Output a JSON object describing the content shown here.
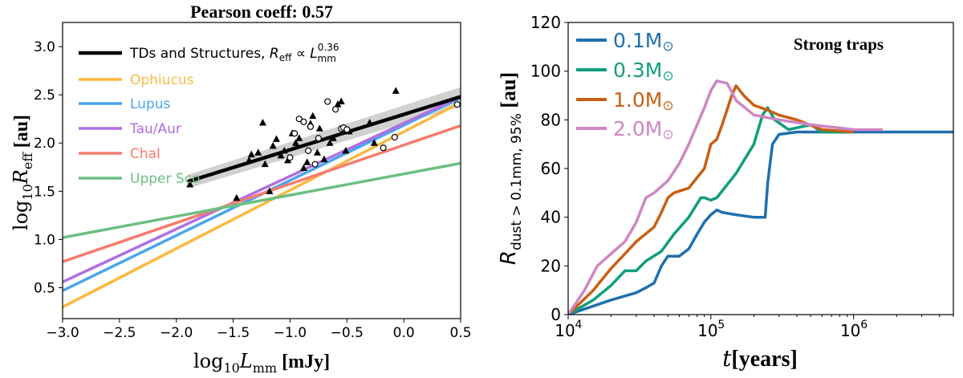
{
  "chart_data": [
    {
      "type": "scatter",
      "title": "Pearson coeff: 0.57",
      "xlabel": "log10Lmm [mJy]",
      "ylabel": "log10Reff [au]",
      "xlim": [
        -3.0,
        0.5
      ],
      "ylim": [
        0.18,
        3.25
      ],
      "xticks": [
        "−3.0",
        "−2.5",
        "−2.0",
        "−1.5",
        "−1.0",
        "−0.5",
        "0.0",
        "0.5"
      ],
      "xtick_values": [
        -3.0,
        -2.5,
        -2.0,
        -1.5,
        -1.0,
        -0.5,
        0.0,
        0.5
      ],
      "yticks": [
        "0.5",
        "1.0",
        "1.5",
        "2.0",
        "2.5",
        "3.0"
      ],
      "ytick_values": [
        0.5,
        1.0,
        1.5,
        2.0,
        2.5,
        3.0
      ],
      "legend_position": "top-left",
      "lines": [
        {
          "name": "TDs and Structures, Reff ∝ L^0.36 mm",
          "color": "#000000",
          "x": [
            -1.9,
            0.5
          ],
          "y": [
            1.6,
            2.48
          ]
        },
        {
          "name": "Ophiucus",
          "color": "#fbb940",
          "x": [
            -3.0,
            0.5
          ],
          "y": [
            0.3,
            2.42
          ]
        },
        {
          "name": "Lupus",
          "color": "#4aa5ee",
          "x": [
            -3.0,
            0.5
          ],
          "y": [
            0.47,
            2.47
          ]
        },
        {
          "name": "Tau/Aur",
          "color": "#b16fe1",
          "x": [
            -3.0,
            0.5
          ],
          "y": [
            0.56,
            2.48
          ]
        },
        {
          "name": "ChaI",
          "color": "#f77c6d",
          "x": [
            -3.0,
            0.5
          ],
          "y": [
            0.77,
            2.18
          ]
        },
        {
          "name": "Upper Sco",
          "color": "#6bbf84",
          "x": [
            -3.0,
            0.5
          ],
          "y": [
            1.02,
            1.79
          ]
        }
      ],
      "triangles": [
        [
          -1.88,
          1.57
        ],
        [
          -1.47,
          1.43
        ],
        [
          -1.36,
          1.82
        ],
        [
          -1.34,
          1.88
        ],
        [
          -1.28,
          1.9
        ],
        [
          -1.24,
          2.21
        ],
        [
          -1.22,
          1.78
        ],
        [
          -1.18,
          1.5
        ],
        [
          -1.15,
          1.97
        ],
        [
          -1.12,
          2.04
        ],
        [
          -1.08,
          1.87
        ],
        [
          -1.05,
          1.92
        ],
        [
          -1.02,
          1.82
        ],
        [
          -0.98,
          2.1
        ],
        [
          -0.95,
          2.0
        ],
        [
          -0.92,
          2.05
        ],
        [
          -0.88,
          1.74
        ],
        [
          -0.85,
          1.8
        ],
        [
          -0.82,
          2.2
        ],
        [
          -0.8,
          2.28
        ],
        [
          -0.76,
          1.9
        ],
        [
          -0.74,
          2.15
        ],
        [
          -0.7,
          1.83
        ],
        [
          -0.65,
          2.0
        ],
        [
          -0.62,
          2.05
        ],
        [
          -0.58,
          2.4
        ],
        [
          -0.55,
          2.43
        ],
        [
          -0.51,
          1.92
        ],
        [
          -0.48,
          2.12
        ],
        [
          -0.3,
          2.21
        ],
        [
          -0.26,
          2.0
        ],
        [
          -0.07,
          2.54
        ]
      ],
      "circles": [
        [
          -1.0,
          1.85
        ],
        [
          -0.96,
          2.1
        ],
        [
          -0.92,
          2.25
        ],
        [
          -0.88,
          2.22
        ],
        [
          -0.84,
          1.92
        ],
        [
          -0.82,
          2.17
        ],
        [
          -0.78,
          1.78
        ],
        [
          -0.75,
          2.05
        ],
        [
          -0.67,
          2.43
        ],
        [
          -0.6,
          2.35
        ],
        [
          -0.55,
          2.15
        ],
        [
          -0.53,
          2.16
        ],
        [
          -0.5,
          2.14
        ],
        [
          -0.18,
          1.95
        ],
        [
          -0.08,
          2.06
        ],
        [
          0.47,
          2.4
        ]
      ]
    },
    {
      "type": "line",
      "xlabel": "t[years]",
      "ylabel": "Rdust > 0.1mm, 95% [au]",
      "annotation": "Strong traps",
      "xscale": "log",
      "xlim": [
        10000,
        5000000
      ],
      "ylim": [
        0,
        120
      ],
      "xticks": [
        "10",
        "10",
        "10"
      ],
      "xtick_exponents": [
        "4",
        "5",
        "6"
      ],
      "xtick_values": [
        10000,
        100000,
        1000000
      ],
      "yticks": [
        "0",
        "20",
        "40",
        "60",
        "80",
        "100",
        "120"
      ],
      "ytick_values": [
        0,
        20,
        40,
        60,
        80,
        100,
        120
      ],
      "legend_position": "top-left",
      "series": [
        {
          "name": "0.1M",
          "color": "#1f6faf",
          "x": [
            10000,
            20000,
            30000,
            35000,
            40000,
            45000,
            50000,
            60000,
            70000,
            80000,
            90000,
            100000,
            110000,
            120000,
            150000,
            200000,
            240000,
            250000,
            270000,
            300000,
            400000,
            1000000,
            5000000
          ],
          "y": [
            0,
            6,
            9,
            11,
            13,
            20,
            24,
            24,
            27,
            33,
            38,
            41,
            43,
            42,
            41,
            40,
            40,
            54,
            70,
            74,
            75,
            75,
            75
          ]
        },
        {
          "name": "0.3M",
          "color": "#0f9e7b",
          "x": [
            10000,
            15000,
            20000,
            25000,
            30000,
            35000,
            45000,
            55000,
            70000,
            85000,
            90000,
            100000,
            110000,
            150000,
            200000,
            230000,
            250000,
            280000,
            350000,
            500000,
            600000,
            700000,
            1000000
          ],
          "y": [
            0,
            6,
            12,
            18,
            18,
            22,
            26,
            33,
            40,
            48,
            48,
            47,
            48,
            58,
            70,
            82,
            85,
            80,
            76,
            78,
            75,
            75,
            75
          ]
        },
        {
          "name": "1.0M",
          "color": "#c95f14",
          "x": [
            10000,
            15000,
            20000,
            25000,
            30000,
            40000,
            45000,
            50000,
            55000,
            70000,
            90000,
            100000,
            110000,
            120000,
            140000,
            150000,
            170000,
            200000,
            250000,
            300000,
            400000,
            600000,
            1000000
          ],
          "y": [
            0,
            10,
            19,
            25,
            30,
            36,
            42,
            48,
            50,
            52,
            60,
            70,
            72,
            78,
            90,
            94,
            90,
            86,
            84,
            82,
            80,
            76,
            75
          ]
        },
        {
          "name": "2.0M",
          "color": "#cf86c4",
          "x": [
            10000,
            13000,
            16000,
            20000,
            25000,
            30000,
            35000,
            40000,
            50000,
            60000,
            70000,
            90000,
            100000,
            110000,
            130000,
            150000,
            200000,
            300000,
            500000,
            1000000,
            1600000
          ],
          "y": [
            0,
            10,
            20,
            25,
            30,
            38,
            48,
            50,
            55,
            62,
            70,
            85,
            92,
            96,
            95,
            88,
            82,
            80,
            78,
            76,
            76
          ]
        }
      ]
    }
  ]
}
